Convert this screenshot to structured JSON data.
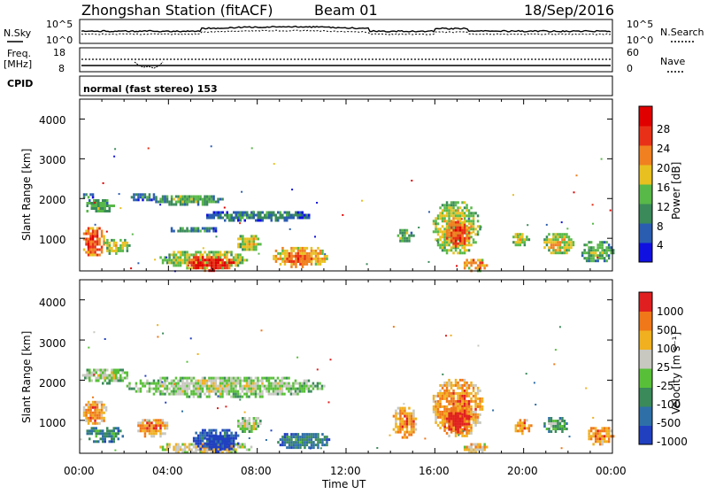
{
  "header": {
    "station": "Zhongshan Station (fitACF)",
    "beam": "Beam 01",
    "date": "18/Sep/2016"
  },
  "summary_panels": {
    "nsky_label": "N.Sky",
    "nsearch_label": "N.Search",
    "noise_ticks": [
      "10^5",
      "10^0"
    ],
    "freq_label_1": "Freq.",
    "freq_label_2": "[MHz]",
    "freq_ticks": [
      "18",
      "8"
    ],
    "nave_label": "Nave",
    "nave_ticks": [
      "60",
      "0"
    ],
    "cpid_label": "CPID",
    "cpid_text": "normal (fast stereo) 153"
  },
  "xaxis": {
    "label": "Time UT",
    "ticks": [
      "00:00",
      "04:00",
      "08:00",
      "12:00",
      "16:00",
      "20:00",
      "00:00"
    ]
  },
  "power_panel": {
    "ylabel": "Slant Range [km]",
    "yticks": [
      "4000",
      "3000",
      "2000",
      "1000"
    ],
    "colorbar_label": "Power [dB]",
    "colorbar_ticks": [
      "28",
      "24",
      "20",
      "16",
      "12",
      "8",
      "4"
    ]
  },
  "velocity_panel": {
    "ylabel": "Slant Range [km]",
    "yticks": [
      "4000",
      "3000",
      "2000",
      "1000"
    ],
    "colorbar_label": "Velocity [m s⁻¹]",
    "colorbar_ticks": [
      "1000",
      "500",
      "100",
      "25",
      "-25",
      "-100",
      "-500",
      "-1000"
    ]
  },
  "chart_data": [
    {
      "type": "heatmap",
      "title": "Power",
      "xlabel": "Time UT",
      "ylabel": "Slant Range [km]",
      "xlim_hours": [
        0,
        24
      ],
      "ylim": [
        180,
        4500
      ],
      "colorbar": {
        "label": "Power [dB]",
        "range": [
          0,
          30
        ],
        "ticks": [
          4,
          8,
          12,
          16,
          20,
          24,
          28
        ]
      },
      "colors": [
        "#1010e0",
        "#2a5db0",
        "#3a8a5a",
        "#58b848",
        "#e8c020",
        "#f08020",
        "#e83018",
        "#e00000"
      ],
      "blobs": [
        {
          "t": [
            0.05,
            0.6
          ],
          "r": [
            2000,
            2200
          ],
          "lvl": 2
        },
        {
          "t": [
            0.1,
            1.5
          ],
          "r": [
            1650,
            2050
          ],
          "lvl": 3
        },
        {
          "t": [
            0.05,
            1.1
          ],
          "r": [
            550,
            1350
          ],
          "lvl": 6
        },
        {
          "t": [
            1.0,
            2.2
          ],
          "r": [
            600,
            1050
          ],
          "lvl": 4
        },
        {
          "t": [
            2.2,
            3.5
          ],
          "r": [
            1950,
            2200
          ],
          "lvl": 2
        },
        {
          "t": [
            3.2,
            6.4
          ],
          "r": [
            1850,
            2150
          ],
          "lvl": 3
        },
        {
          "t": [
            5.5,
            10.5
          ],
          "r": [
            1450,
            1750
          ],
          "lvl": 2
        },
        {
          "t": [
            4.0,
            6.2
          ],
          "r": [
            1150,
            1350
          ],
          "lvl": 2
        },
        {
          "t": [
            3.5,
            7.5
          ],
          "r": [
            250,
            750
          ],
          "lvl": 4
        },
        {
          "t": [
            4.8,
            6.9
          ],
          "r": [
            200,
            620
          ],
          "lvl": 7
        },
        {
          "t": [
            7.0,
            8.2
          ],
          "r": [
            700,
            1150
          ],
          "lvl": 4
        },
        {
          "t": [
            8.6,
            11.2
          ],
          "r": [
            300,
            850
          ],
          "lvl": 5
        },
        {
          "t": [
            9.2,
            10.6
          ],
          "r": [
            380,
            650
          ],
          "lvl": 6
        },
        {
          "t": [
            14.2,
            15.0
          ],
          "r": [
            900,
            1300
          ],
          "lvl": 3
        },
        {
          "t": [
            15.8,
            18.0
          ],
          "r": [
            600,
            2000
          ],
          "lvl": 4
        },
        {
          "t": [
            16.4,
            17.6
          ],
          "r": [
            800,
            1500
          ],
          "lvl": 6
        },
        {
          "t": [
            17.2,
            18.4
          ],
          "r": [
            200,
            550
          ],
          "lvl": 5
        },
        {
          "t": [
            19.4,
            20.2
          ],
          "r": [
            800,
            1200
          ],
          "lvl": 4
        },
        {
          "t": [
            20.8,
            22.2
          ],
          "r": [
            600,
            1200
          ],
          "lvl": 4
        },
        {
          "t": [
            22.5,
            24.0
          ],
          "r": [
            400,
            1000
          ],
          "lvl": 3
        }
      ]
    },
    {
      "type": "heatmap",
      "title": "Velocity",
      "xlabel": "Time UT",
      "ylabel": "Slant Range [km]",
      "xlim_hours": [
        0,
        24
      ],
      "ylim": [
        180,
        4500
      ],
      "colorbar": {
        "label": "Velocity [m s⁻¹]",
        "range": [
          -1000,
          1000
        ],
        "ticks": [
          1000,
          500,
          100,
          25,
          -25,
          -100,
          -500,
          -1000
        ]
      },
      "colors": [
        "#2040c0",
        "#2e6fa8",
        "#3a8a5a",
        "#58c038",
        "#c8c8c0",
        "#f0b020",
        "#f07818",
        "#e02020"
      ],
      "blobs": [
        {
          "t": [
            0.0,
            2.2
          ],
          "r": [
            1950,
            2350
          ],
          "lvl": 4
        },
        {
          "t": [
            2.0,
            11.0
          ],
          "r": [
            1600,
            2150
          ],
          "lvl": 4
        },
        {
          "t": [
            0.05,
            1.2
          ],
          "r": [
            900,
            1550
          ],
          "lvl": 6
        },
        {
          "t": [
            0.2,
            2.0
          ],
          "r": [
            450,
            900
          ],
          "lvl": 2
        },
        {
          "t": [
            2.5,
            4.0
          ],
          "r": [
            600,
            1100
          ],
          "lvl": 6
        },
        {
          "t": [
            3.5,
            7.8
          ],
          "r": [
            200,
            500
          ],
          "lvl": 5
        },
        {
          "t": [
            5.0,
            7.2
          ],
          "r": [
            250,
            850
          ],
          "lvl": 1
        },
        {
          "t": [
            5.6,
            6.8
          ],
          "r": [
            300,
            700
          ],
          "lvl": 0
        },
        {
          "t": [
            7.0,
            8.2
          ],
          "r": [
            700,
            1150
          ],
          "lvl": 4
        },
        {
          "t": [
            8.8,
            11.3
          ],
          "r": [
            300,
            750
          ],
          "lvl": 2
        },
        {
          "t": [
            14.0,
            15.2
          ],
          "r": [
            600,
            1400
          ],
          "lvl": 6
        },
        {
          "t": [
            15.8,
            18.2
          ],
          "r": [
            600,
            2100
          ],
          "lvl": 6
        },
        {
          "t": [
            16.3,
            17.6
          ],
          "r": [
            700,
            1400
          ],
          "lvl": 7
        },
        {
          "t": [
            17.2,
            18.4
          ],
          "r": [
            200,
            500
          ],
          "lvl": 5
        },
        {
          "t": [
            19.5,
            20.3
          ],
          "r": [
            700,
            1100
          ],
          "lvl": 6
        },
        {
          "t": [
            20.8,
            22.0
          ],
          "r": [
            700,
            1150
          ],
          "lvl": 3
        },
        {
          "t": [
            22.8,
            24.0
          ],
          "r": [
            400,
            900
          ],
          "lvl": 6
        }
      ]
    }
  ]
}
